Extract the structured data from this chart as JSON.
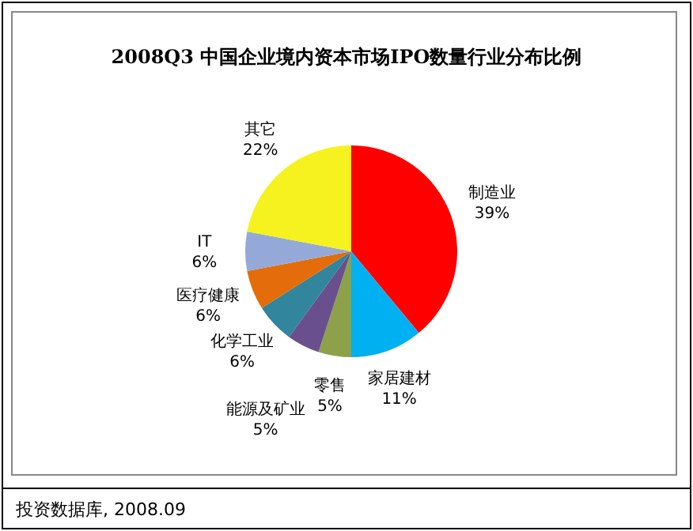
{
  "chart_data": {
    "type": "pie",
    "title": "2008Q3 中国企业境内资本市场IPO数量行业分布比例",
    "categories": [
      "制造业",
      "家居建材",
      "零售",
      "能源及矿业",
      "化学工业",
      "医疗健康",
      "IT",
      "其它"
    ],
    "values": [
      39,
      11,
      5,
      5,
      6,
      6,
      6,
      22
    ],
    "colors": [
      "#ff0000",
      "#00b0f0",
      "#8da14a",
      "#6a4f8f",
      "#31859c",
      "#e46c0a",
      "#95a9d8",
      "#f5f21f"
    ],
    "value_labels": [
      "39%",
      "11%",
      "5%",
      "5%",
      "6%",
      "6%",
      "6%",
      "22%"
    ],
    "annotations": [
      "投资数据库, 2008.09"
    ]
  }
}
